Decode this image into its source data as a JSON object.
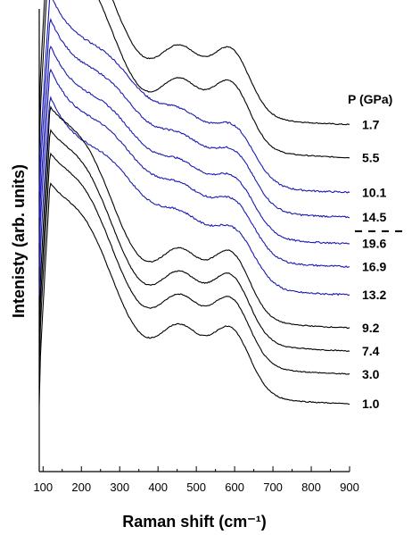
{
  "chart_data": {
    "type": "line",
    "title": "",
    "xlabel": "Raman shift (cm⁻¹)",
    "ylabel": "Intenisty (arb. units)",
    "xlim": [
      90,
      900
    ],
    "ylim": [
      0,
      14
    ],
    "x_ticks": [
      100,
      200,
      300,
      400,
      500,
      600,
      700,
      800,
      900
    ],
    "legend_title": "P (GPa)",
    "grid": false,
    "colors": {
      "black": "#000000",
      "blue": "#1a1ab4"
    },
    "series": [
      {
        "name": "1.7",
        "color": "black",
        "offset": 10.5,
        "profile": "low_p"
      },
      {
        "name": "5.5",
        "color": "black",
        "offset": 9.5,
        "profile": "low_p"
      },
      {
        "name": "10.1",
        "color": "blue",
        "offset": 8.45,
        "profile": "high_p"
      },
      {
        "name": "14.5",
        "color": "blue",
        "offset": 7.7,
        "profile": "high_p"
      },
      {
        "name": "19.6",
        "color": "blue",
        "offset": 6.9,
        "profile": "high_p"
      },
      {
        "name": "16.9",
        "color": "blue",
        "offset": 6.2,
        "profile": "high_p"
      },
      {
        "name": "13.2",
        "color": "blue",
        "offset": 5.35,
        "profile": "high_p"
      },
      {
        "name": "9.2",
        "color": "black",
        "offset": 4.35,
        "profile": "low_p"
      },
      {
        "name": "7.4",
        "color": "black",
        "offset": 3.65,
        "profile": "low_p"
      },
      {
        "name": "3.0",
        "color": "black",
        "offset": 2.95,
        "profile": "low_p"
      },
      {
        "name": "1.0",
        "color": "black",
        "offset": 2.05,
        "profile": "low_p"
      }
    ],
    "separator_after": "14.5"
  }
}
